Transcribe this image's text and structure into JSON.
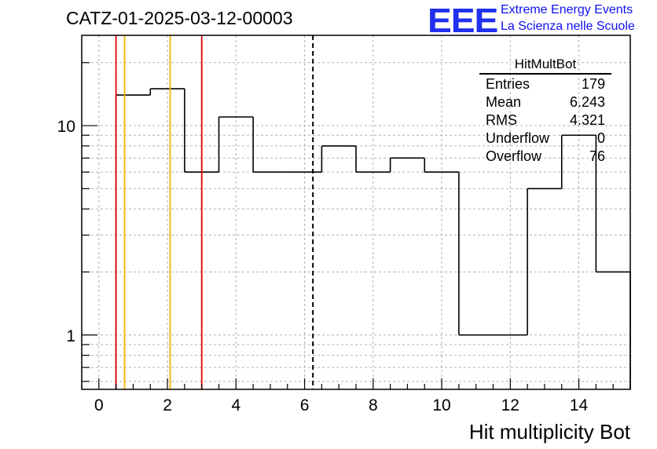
{
  "header": {
    "title": "CATZ-01-2025-03-12-00003",
    "logo_text": "EEE",
    "logo_line1": "Extreme Energy Events",
    "logo_line2": "La Scienza nelle Scuole"
  },
  "stats_box": {
    "title": "HitMultBot",
    "rows": [
      {
        "key": "Entries",
        "value": "179"
      },
      {
        "key": "Mean",
        "value": "6.243"
      },
      {
        "key": "RMS",
        "value": "4.321"
      },
      {
        "key": "Underflow",
        "value": "0"
      },
      {
        "key": "Overflow",
        "value": "76"
      }
    ]
  },
  "colors": {
    "histogram": "#000000",
    "red_line": "#e00000",
    "orange_line": "#f0b400",
    "grid": "#b0b0b0"
  },
  "chart_data": {
    "type": "bar",
    "histogram": "step",
    "xlabel": "Hit multiplicity Bot",
    "ylabel": "",
    "xlim": [
      -0.5,
      15.5
    ],
    "ylim": [
      0.55,
      27
    ],
    "yscale": "log",
    "grid": true,
    "bins": [
      {
        "low": 0.5,
        "high": 1.5,
        "value": 14
      },
      {
        "low": 1.5,
        "high": 2.5,
        "value": 15
      },
      {
        "low": 2.5,
        "high": 3.5,
        "value": 6
      },
      {
        "low": 3.5,
        "high": 4.5,
        "value": 11
      },
      {
        "low": 4.5,
        "high": 5.5,
        "value": 6
      },
      {
        "low": 5.5,
        "high": 6.5,
        "value": 6
      },
      {
        "low": 6.5,
        "high": 7.5,
        "value": 8
      },
      {
        "low": 7.5,
        "high": 8.5,
        "value": 6
      },
      {
        "low": 8.5,
        "high": 9.5,
        "value": 7
      },
      {
        "low": 9.5,
        "high": 10.5,
        "value": 6
      },
      {
        "low": 10.5,
        "high": 11.5,
        "value": 1
      },
      {
        "low": 11.5,
        "high": 12.5,
        "value": 1
      },
      {
        "low": 12.5,
        "high": 13.5,
        "value": 5
      },
      {
        "low": 13.5,
        "high": 14.5,
        "value": 9
      },
      {
        "low": 14.5,
        "high": 15.5,
        "value": 2
      }
    ],
    "x_ticks": [
      0,
      2,
      4,
      6,
      8,
      10,
      12,
      14
    ],
    "x_tick_labels": [
      "0",
      "2",
      "4",
      "6",
      "8",
      "10",
      "12",
      "14"
    ],
    "y_ticks": [
      1,
      10
    ],
    "y_tick_labels": [
      "1",
      "10"
    ],
    "vertical_lines": [
      {
        "x": 0.5,
        "color": "red",
        "style": "solid"
      },
      {
        "x": 0.75,
        "color": "orange",
        "style": "solid"
      },
      {
        "x": 2.08,
        "color": "orange",
        "style": "solid"
      },
      {
        "x": 3.0,
        "color": "red",
        "style": "solid"
      },
      {
        "x": 6.243,
        "color": "black",
        "style": "dashed"
      }
    ]
  }
}
